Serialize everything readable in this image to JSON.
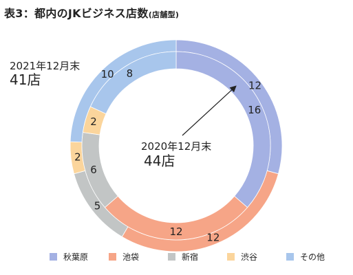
{
  "title": {
    "main": "表3：都内のJKビジネス店数",
    "sub": "(店舗型)"
  },
  "chart_data": {
    "type": "donut",
    "title": "表3：都内のJKビジネス店数(店舗型)",
    "categories": [
      "秋葉原",
      "池袋",
      "新宿",
      "渋谷",
      "その他"
    ],
    "colors": [
      "#a4b1e3",
      "#f6a587",
      "#c2c5c5",
      "#fbd59c",
      "#a8c6ec"
    ],
    "series": [
      {
        "name": "2021年12月末",
        "total_label": "41店",
        "ring": "outer",
        "values": [
          12,
          12,
          5,
          2,
          10
        ]
      },
      {
        "name": "2020年12月末",
        "total_label": "44店",
        "ring": "inner",
        "values": [
          16,
          12,
          6,
          2,
          8
        ]
      }
    ],
    "legend_position": "bottom"
  }
}
